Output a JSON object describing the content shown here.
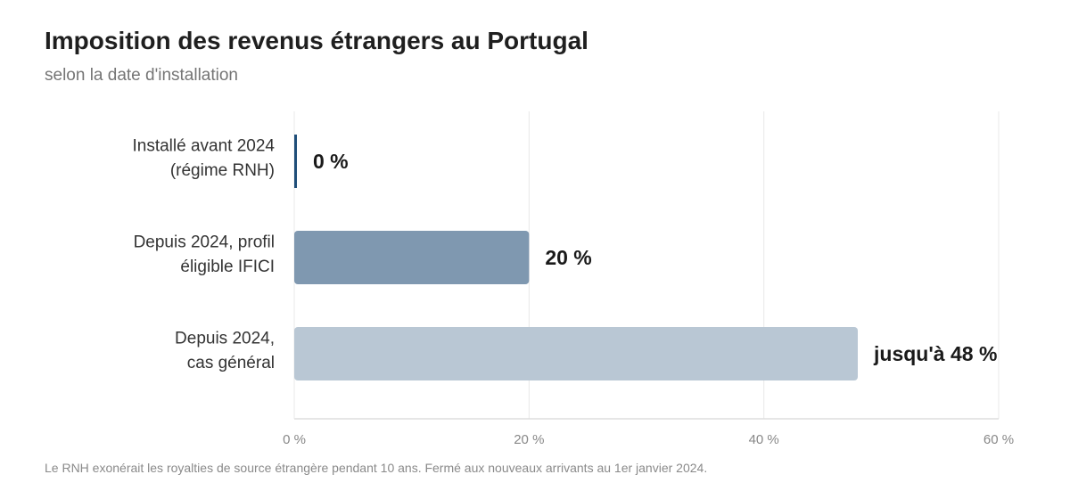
{
  "header": {
    "title": "Imposition des revenus étrangers au Portugal",
    "subtitle": "selon la date d'installation"
  },
  "footnote": "Le RNH exonérait les royalties de source étrangère pendant 10 ans. Fermé aux nouveaux arrivants au 1er janvier 2024.",
  "colors": {
    "bar_rnh": "#1f4e79",
    "bar_ifici": "#7f98b0",
    "bar_general": "#b9c7d4",
    "grid": "#e8e8e8",
    "axis": "#dddddd",
    "tick_text": "#888888",
    "category_text": "#333333",
    "value_text": "#1a1a1a"
  },
  "chart_data": {
    "type": "bar",
    "orientation": "horizontal",
    "categories": [
      [
        "Installé avant 2024",
        "(régime RNH)"
      ],
      [
        "Depuis 2024, profil",
        "éligible IFICI"
      ],
      [
        "Depuis 2024,",
        "cas général"
      ]
    ],
    "values": [
      0,
      20,
      48
    ],
    "value_labels": [
      "0 %",
      "20 %",
      "jusqu'à 48 %"
    ],
    "xlim": [
      0,
      60
    ],
    "xticks": [
      0,
      20,
      40,
      60
    ],
    "xtick_labels": [
      "0 %",
      "20 %",
      "40 %",
      "60 %"
    ],
    "grid": true,
    "legend": "none"
  }
}
